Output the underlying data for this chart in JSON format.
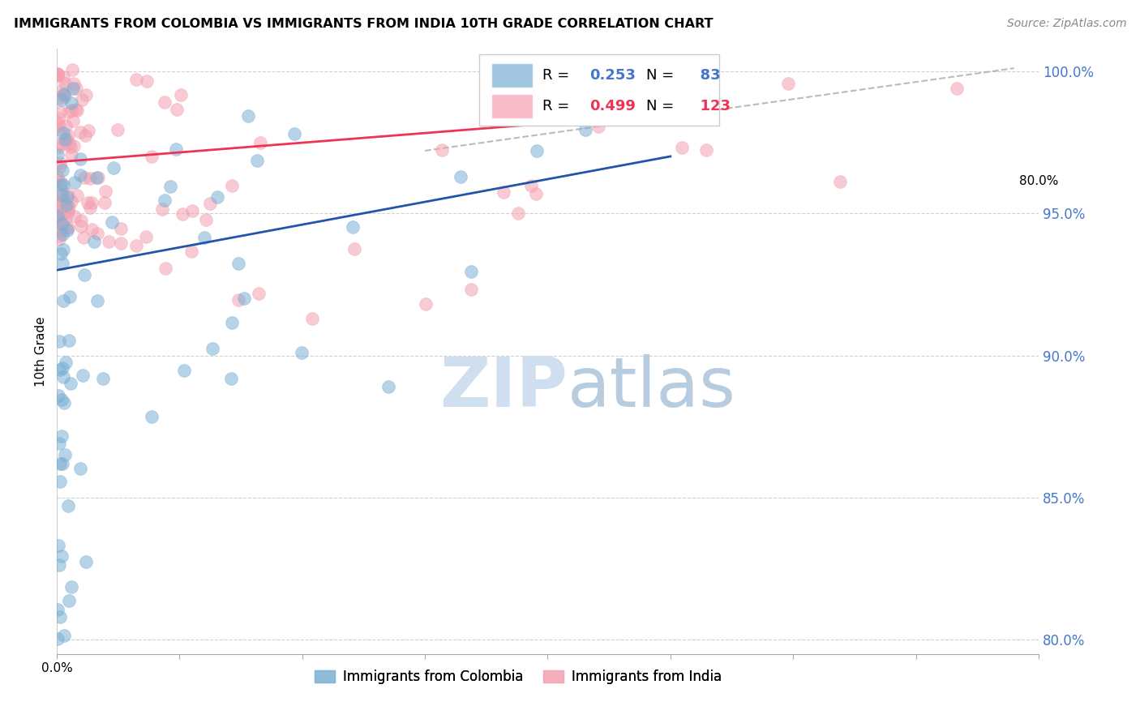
{
  "title": "IMMIGRANTS FROM COLOMBIA VS IMMIGRANTS FROM INDIA 10TH GRADE CORRELATION CHART",
  "source": "Source: ZipAtlas.com",
  "ylabel": "10th Grade",
  "xlim": [
    0.0,
    0.8
  ],
  "ylim": [
    0.795,
    1.008
  ],
  "yticks": [
    0.8,
    0.85,
    0.9,
    0.95,
    1.0
  ],
  "ytick_labels": [
    "80.0%",
    "85.0%",
    "90.0%",
    "95.0%",
    "100.0%"
  ],
  "xticks": [
    0.0,
    0.1,
    0.2,
    0.3,
    0.4,
    0.5,
    0.6,
    0.7,
    0.8
  ],
  "xtick_labels": [
    "0.0%",
    "",
    "",
    "",
    "",
    "",
    "",
    "",
    "80.0%"
  ],
  "colombia_R": 0.253,
  "colombia_N": 83,
  "india_R": 0.499,
  "india_N": 123,
  "colombia_color": "#7BAFD4",
  "india_color": "#F4A0B0",
  "colombia_line_color": "#2255AA",
  "india_line_color": "#EE3355",
  "watermark_color": "#D0DFF0",
  "colombia_line_x": [
    0.0,
    0.5
  ],
  "colombia_line_y": [
    0.93,
    0.97
  ],
  "india_line_x": [
    0.0,
    0.5
  ],
  "india_line_y": [
    0.968,
    0.985
  ],
  "dash_line_x": [
    0.3,
    0.78
  ],
  "dash_line_y": [
    0.972,
    1.001
  ]
}
